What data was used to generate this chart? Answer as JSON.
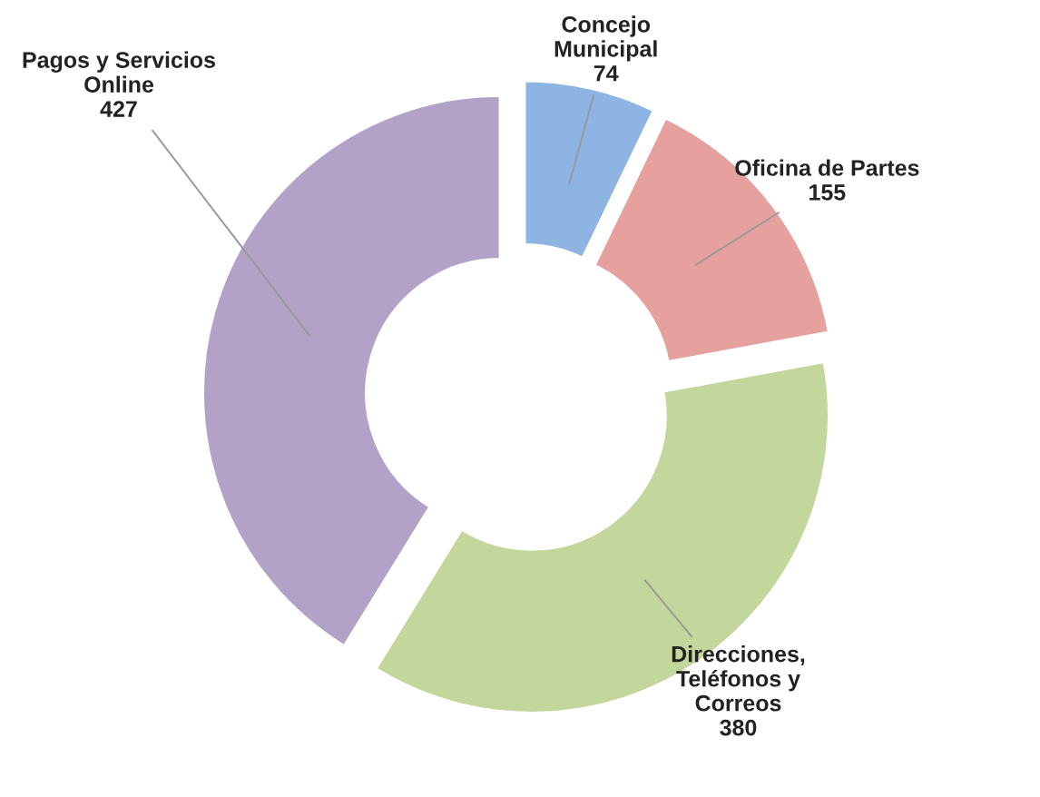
{
  "chart_data": {
    "type": "donut",
    "categories": [
      "Concejo\nMunicipal",
      "Oficina de Partes",
      "Direcciones,\nTeléfonos y\nCorreos",
      "Pagos y Servicios\nOnline"
    ],
    "values": [
      74,
      155,
      380,
      427
    ],
    "colors": [
      "#8db4e2",
      "#e6a09e",
      "#c3d69b",
      "#b3a2c7"
    ],
    "data_labels": true,
    "legend": false
  }
}
